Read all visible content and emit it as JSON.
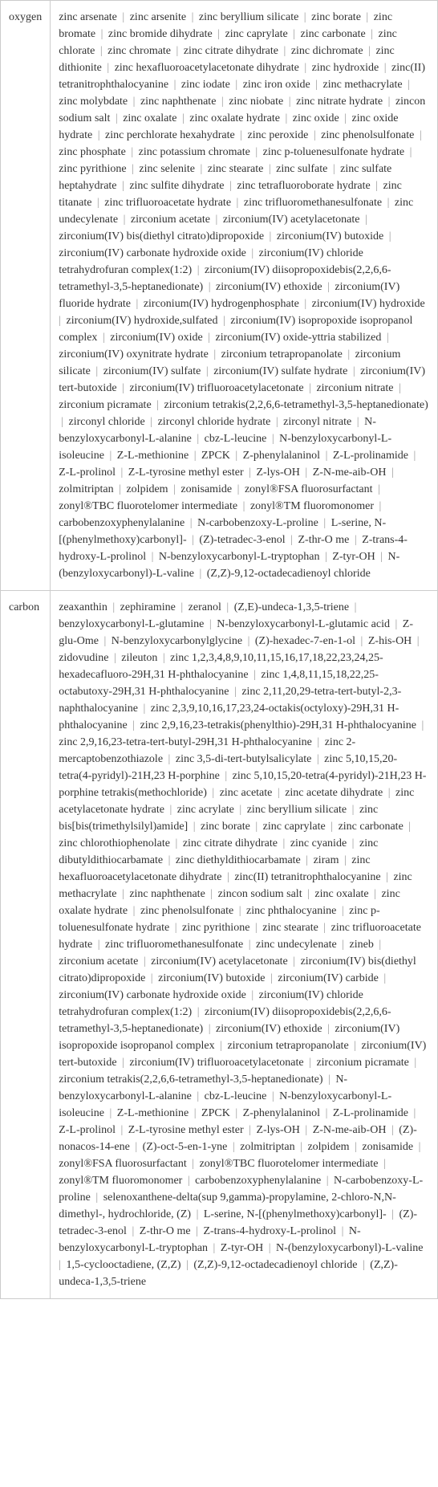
{
  "rows": [
    {
      "label": "oxygen",
      "items": [
        "zinc arsenate",
        "zinc arsenite",
        "zinc beryllium silicate",
        "zinc borate",
        "zinc bromate",
        "zinc bromide dihydrate",
        "zinc caprylate",
        "zinc carbonate",
        "zinc chlorate",
        "zinc chromate",
        "zinc citrate dihydrate",
        "zinc dichromate",
        "zinc dithionite",
        "zinc hexafluoroacetylacetonate dihydrate",
        "zinc hydroxide",
        "zinc(II) tetranitrophthalocyanine",
        "zinc iodate",
        "zinc iron oxide",
        "zinc methacrylate",
        "zinc molybdate",
        "zinc naphthenate",
        "zinc niobate",
        "zinc nitrate hydrate",
        "zincon sodium salt",
        "zinc oxalate",
        "zinc oxalate hydrate",
        "zinc oxide",
        "zinc oxide hydrate",
        "zinc perchlorate hexahydrate",
        "zinc peroxide",
        "zinc phenolsulfonate",
        "zinc phosphate",
        "zinc potassium chromate",
        "zinc p-toluenesulfonate hydrate",
        "zinc pyrithione",
        "zinc selenite",
        "zinc stearate",
        "zinc sulfate",
        "zinc sulfate heptahydrate",
        "zinc sulfite dihydrate",
        "zinc tetrafluoroborate hydrate",
        "zinc titanate",
        "zinc trifluoroacetate hydrate",
        "zinc trifluoromethanesulfonate",
        "zinc undecylenate",
        "zirconium acetate",
        "zirconium(IV) acetylacetonate",
        "zirconium(IV) bis(diethyl citrato)dipropoxide",
        "zirconium(IV) butoxide",
        "zirconium(IV) carbonate hydroxide oxide",
        "zirconium(IV) chloride tetrahydrofuran complex(1:2)",
        "zirconium(IV) diisopropoxidebis(2,2,6,6-tetramethyl-3,5-heptanedionate)",
        "zirconium(IV) ethoxide",
        "zirconium(IV) fluoride hydrate",
        "zirconium(IV) hydrogenphosphate",
        "zirconium(IV) hydroxide",
        "zirconium(IV) hydroxide,sulfated",
        "zirconium(IV) isopropoxide isopropanol complex",
        "zirconium(IV) oxide",
        "zirconium(IV) oxide-yttria stabilized",
        "zirconium(IV) oxynitrate hydrate",
        "zirconium tetrapropanolate",
        "zirconium silicate",
        "zirconium(IV) sulfate",
        "zirconium(IV) sulfate hydrate",
        "zirconium(IV) tert-butoxide",
        "zirconium(IV) trifluoroacetylacetonate",
        "zirconium nitrate",
        "zirconium picramate",
        "zirconium tetrakis(2,2,6,6-tetramethyl-3,5-heptanedionate)",
        "zirconyl chloride",
        "zirconyl chloride hydrate",
        "zirconyl nitrate",
        "N-benzyloxycarbonyl-L-alanine",
        "cbz-L-leucine",
        "N-benzyloxycarbonyl-L-isoleucine",
        "Z-L-methionine",
        "ZPCK",
        "Z-phenylalaninol",
        "Z-L-prolinamide",
        "Z-L-prolinol",
        "Z-L-tyrosine methyl ester",
        "Z-lys-OH",
        "Z-N-me-aib-OH",
        "zolmitriptan",
        "zolpidem",
        "zonisamide",
        "zonyl®FSA fluorosurfactant",
        "zonyl®TBC fluorotelomer intermediate",
        "zonyl®TM fluoromonomer",
        "carbobenzoxyphenylalanine",
        "N-carbobenzoxy-L-proline",
        "L-serine, N-[(phenylmethoxy)carbonyl]-",
        "(Z)-tetradec-3-enol",
        "Z-thr-O me",
        "Z-trans-4-hydroxy-L-prolinol",
        "N-benzyloxycarbonyl-L-tryptophan",
        "Z-tyr-OH",
        "N-(benzyloxycarbonyl)-L-valine",
        "(Z,Z)-9,12-octadecadienoyl chloride"
      ]
    },
    {
      "label": "carbon",
      "items": [
        "zeaxanthin",
        "zephiramine",
        "zeranol",
        "(Z,E)-undeca-1,3,5-triene",
        "benzyloxycarbonyl-L-glutamine",
        "N-benzyloxycarbonyl-L-glutamic acid",
        "Z-glu-Ome",
        "N-benzyloxycarbonylglycine",
        "(Z)-hexadec-7-en-1-ol",
        "Z-his-OH",
        "zidovudine",
        "zileuton",
        "zinc 1,2,3,4,8,9,10,11,15,16,17,18,22,23,24,25-hexadecafluoro-29H,31 H-phthalocyanine",
        "zinc 1,4,8,11,15,18,22,25-octabutoxy-29H,31 H-phthalocyanine",
        "zinc 2,11,20,29-tetra-tert-butyl-2,3-naphthalocyanine",
        "zinc 2,3,9,10,16,17,23,24-octakis(octyloxy)-29H,31 H-phthalocyanine",
        "zinc 2,9,16,23-tetrakis(phenylthio)-29H,31 H-phthalocyanine",
        "zinc 2,9,16,23-tetra-tert-butyl-29H,31 H-phthalocyanine",
        "zinc 2-mercaptobenzothiazole",
        "zinc 3,5-di-tert-butylsalicylate",
        "zinc 5,10,15,20-tetra(4-pyridyl)-21H,23 H-porphine",
        "zinc 5,10,15,20-tetra(4-pyridyl)-21H,23 H-porphine tetrakis(methochloride)",
        "zinc acetate",
        "zinc acetate dihydrate",
        "zinc acetylacetonate hydrate",
        "zinc acrylate",
        "zinc beryllium silicate",
        "zinc bis[bis(trimethylsilyl)amide]",
        "zinc borate",
        "zinc caprylate",
        "zinc carbonate",
        "zinc chlorothiophenolate",
        "zinc citrate dihydrate",
        "zinc cyanide",
        "zinc dibutyldithiocarbamate",
        "zinc diethyldithiocarbamate",
        "ziram",
        "zinc hexafluoroacetylacetonate dihydrate",
        "zinc(II) tetranitrophthalocyanine",
        "zinc methacrylate",
        "zinc naphthenate",
        "zincon sodium salt",
        "zinc oxalate",
        "zinc oxalate hydrate",
        "zinc phenolsulfonate",
        "zinc phthalocyanine",
        "zinc p-toluenesulfonate hydrate",
        "zinc pyrithione",
        "zinc stearate",
        "zinc trifluoroacetate hydrate",
        "zinc trifluoromethanesulfonate",
        "zinc undecylenate",
        "zineb",
        "zirconium acetate",
        "zirconium(IV) acetylacetonate",
        "zirconium(IV) bis(diethyl citrato)dipropoxide",
        "zirconium(IV) butoxide",
        "zirconium(IV) carbide",
        "zirconium(IV) carbonate hydroxide oxide",
        "zirconium(IV) chloride tetrahydrofuran complex(1:2)",
        "zirconium(IV) diisopropoxidebis(2,2,6,6-tetramethyl-3,5-heptanedionate)",
        "zirconium(IV) ethoxide",
        "zirconium(IV) isopropoxide isopropanol complex",
        "zirconium tetrapropanolate",
        "zirconium(IV) tert-butoxide",
        "zirconium(IV) trifluoroacetylacetonate",
        "zirconium picramate",
        "zirconium tetrakis(2,2,6,6-tetramethyl-3,5-heptanedionate)",
        "N-benzyloxycarbonyl-L-alanine",
        "cbz-L-leucine",
        "N-benzyloxycarbonyl-L-isoleucine",
        "Z-L-methionine",
        "ZPCK",
        "Z-phenylalaninol",
        "Z-L-prolinamide",
        "Z-L-prolinol",
        "Z-L-tyrosine methyl ester",
        "Z-lys-OH",
        "Z-N-me-aib-OH",
        "(Z)-nonacos-14-ene",
        "(Z)-oct-5-en-1-yne",
        "zolmitriptan",
        "zolpidem",
        "zonisamide",
        "zonyl®FSA fluorosurfactant",
        "zonyl®TBC fluorotelomer intermediate",
        "zonyl®TM fluoromonomer",
        "carbobenzoxyphenylalanine",
        "N-carbobenzoxy-L-proline",
        "selenoxanthene-delta(sup 9,gamma)-propylamine, 2-chloro-N,N-dimethyl-, hydrochloride, (Z)",
        "L-serine, N-[(phenylmethoxy)carbonyl]-",
        "(Z)-tetradec-3-enol",
        "Z-thr-O me",
        "Z-trans-4-hydroxy-L-prolinol",
        "N-benzyloxycarbonyl-L-tryptophan",
        "Z-tyr-OH",
        "N-(benzyloxycarbonyl)-L-valine",
        "1,5-cyclooctadiene, (Z,Z)",
        "(Z,Z)-9,12-octadecadienoyl chloride",
        "(Z,Z)-undeca-1,3,5-triene"
      ]
    }
  ],
  "separator": "|",
  "colors": {
    "text": "#333333",
    "separator": "#999999",
    "border": "#cccccc",
    "background": "#ffffff"
  },
  "font_family": "Georgia, serif",
  "font_size": 14
}
